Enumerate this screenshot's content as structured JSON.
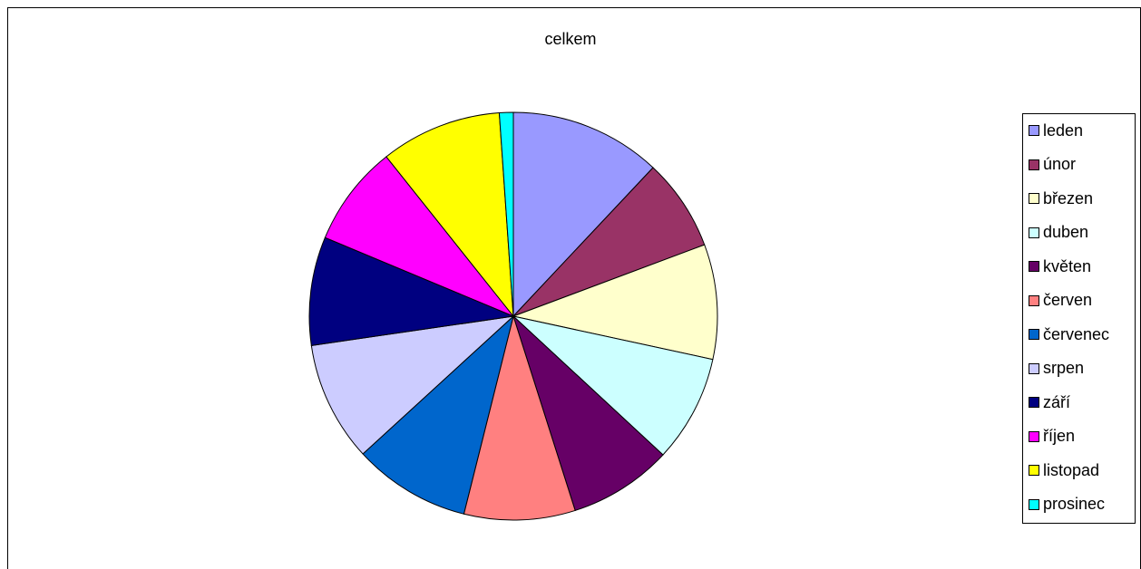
{
  "chart_data": {
    "type": "pie",
    "title": "celkem",
    "legend_position": "right",
    "slices": [
      {
        "label": "leden",
        "value": 12.0,
        "color": "#9999FF"
      },
      {
        "label": "únor",
        "value": 7.3,
        "color": "#993366"
      },
      {
        "label": "březen",
        "value": 9.1,
        "color": "#FFFFCC"
      },
      {
        "label": "duben",
        "value": 8.5,
        "color": "#CCFFFF"
      },
      {
        "label": "květen",
        "value": 8.2,
        "color": "#660066"
      },
      {
        "label": "červen",
        "value": 8.8,
        "color": "#FF8080"
      },
      {
        "label": "červenec",
        "value": 9.3,
        "color": "#0066CC"
      },
      {
        "label": "srpen",
        "value": 9.5,
        "color": "#CCCCFF"
      },
      {
        "label": "září",
        "value": 8.6,
        "color": "#000080"
      },
      {
        "label": "říjen",
        "value": 8.0,
        "color": "#FF00FF"
      },
      {
        "label": "listopad",
        "value": 9.6,
        "color": "#FFFF00"
      },
      {
        "label": "prosinec",
        "value": 1.1,
        "color": "#00FFFF"
      }
    ]
  }
}
